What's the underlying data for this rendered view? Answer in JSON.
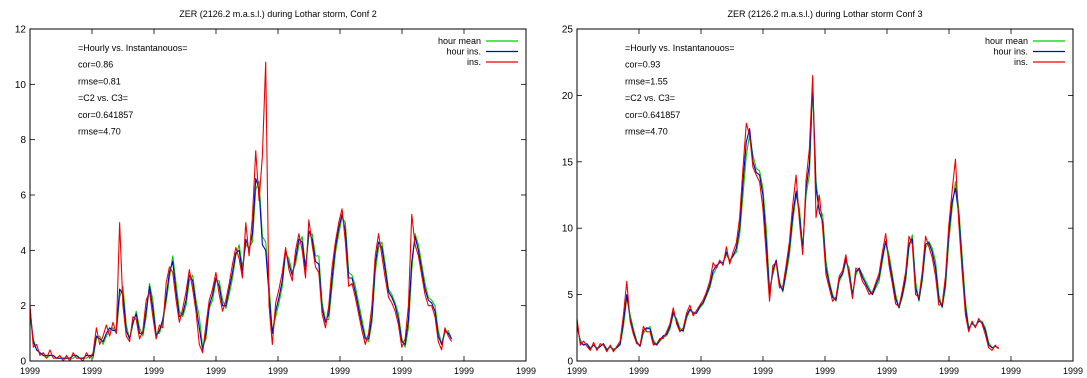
{
  "chart_data": [
    {
      "type": "line",
      "title": "ZER (2126.2 m.a.s.l.) during Lothar storm, Conf 2",
      "xlabel": "",
      "ylabel": "",
      "ylim": [
        0,
        12
      ],
      "yticks": [
        0,
        2,
        4,
        6,
        8,
        10,
        12
      ],
      "xticks": [
        "1999",
        "1999",
        "1999",
        "1999",
        "1999",
        "1999",
        "1999",
        "1999",
        "1999"
      ],
      "grid": false,
      "legend_position": "top-right",
      "annotations": [
        "=Hourly vs. Instantanouos=",
        "cor=0.86",
        "rmse=0.81",
        "=C2 vs. C3=",
        "cor=0.641857",
        "rmse=4.70"
      ],
      "series": [
        {
          "name": "hour mean",
          "color": "#00cc00",
          "values": [
            1.6,
            0.8,
            0.4,
            0.3,
            0.2,
            0.1,
            0.2,
            0.2,
            0.1,
            0.1,
            0.1,
            0.1,
            0.1,
            0.1,
            0.2,
            0.1,
            0.1,
            0.1,
            0.2,
            0.1,
            0.8,
            0.9,
            0.6,
            0.9,
            1.1,
            1.2,
            1.0,
            2.3,
            2.7,
            1.3,
            0.8,
            1.3,
            1.8,
            1.2,
            0.9,
            1.6,
            2.8,
            2.2,
            1.0,
            1.0,
            1.4,
            2.1,
            3.0,
            3.8,
            2.8,
            1.8,
            1.6,
            2.0,
            2.9,
            3.1,
            2.2,
            1.6,
            0.5,
            0.8,
            1.9,
            2.2,
            2.9,
            2.9,
            2.2,
            1.9,
            2.4,
            3.0,
            3.8,
            4.2,
            3.4,
            4.2,
            4.1,
            4.3,
            6.2,
            6.5,
            4.5,
            4.3,
            2.8,
            1.0,
            1.6,
            2.1,
            2.7,
            3.9,
            3.7,
            3.2,
            3.5,
            4.2,
            4.5,
            3.4,
            4.5,
            4.6,
            3.8,
            3.8,
            2.1,
            1.5,
            1.5,
            2.7,
            3.9,
            4.6,
            5.2,
            5.0,
            3.2,
            3.1,
            2.7,
            2.1,
            1.5,
            0.9,
            0.7,
            1.4,
            3.2,
            4.1,
            4.3,
            3.5,
            2.6,
            2.4,
            2.1,
            1.7,
            0.8,
            0.5,
            1.2,
            3.3,
            4.6,
            4.2,
            3.5,
            2.8,
            2.3,
            2.2,
            2.0,
            1.1,
            0.6,
            1.0,
            1.1,
            0.8
          ]
        },
        {
          "name": "hour ins.",
          "color": "#0000cc",
          "values": [
            1.9,
            0.7,
            0.4,
            0.3,
            0.2,
            0.2,
            0.2,
            0.2,
            0.1,
            0.1,
            0.1,
            0.1,
            0.1,
            0.2,
            0.2,
            0.1,
            0.1,
            0.2,
            0.2,
            0.2,
            0.9,
            0.8,
            0.7,
            1.0,
            1.2,
            1.1,
            1.1,
            2.6,
            2.4,
            1.1,
            0.8,
            1.4,
            1.7,
            1.0,
            1.0,
            1.8,
            2.7,
            1.9,
            0.9,
            1.1,
            1.5,
            2.3,
            3.2,
            3.6,
            2.5,
            1.6,
            1.7,
            2.2,
            3.1,
            2.9,
            2.0,
            1.2,
            0.4,
            1.0,
            2.0,
            2.4,
            3.0,
            2.7,
            2.0,
            2.0,
            2.6,
            3.2,
            3.9,
            4.0,
            3.2,
            4.4,
            4.0,
            4.6,
            6.6,
            6.2,
            4.2,
            4.0,
            2.4,
            1.0,
            1.8,
            2.3,
            2.9,
            4.0,
            3.5,
            3.1,
            3.7,
            4.4,
            4.3,
            3.3,
            4.7,
            4.4,
            3.6,
            3.5,
            1.9,
            1.4,
            1.7,
            3.0,
            4.1,
            4.8,
            5.3,
            4.7,
            3.0,
            3.0,
            2.5,
            1.9,
            1.3,
            0.8,
            0.8,
            1.6,
            3.5,
            4.3,
            4.1,
            3.3,
            2.5,
            2.3,
            2.0,
            1.5,
            0.7,
            0.6,
            1.5,
            3.6,
            4.5,
            4.0,
            3.3,
            2.6,
            2.2,
            2.1,
            1.8,
            0.9,
            0.6,
            1.1,
            1.0,
            0.8
          ]
        },
        {
          "name": "ins.",
          "color": "#ee0000",
          "values": [
            2.0,
            0.5,
            0.6,
            0.2,
            0.3,
            0.1,
            0.4,
            0.1,
            0.1,
            0.2,
            0.0,
            0.2,
            0.0,
            0.3,
            0.1,
            0.1,
            0.0,
            0.3,
            0.1,
            0.3,
            1.2,
            0.6,
            0.9,
            1.3,
            0.9,
            1.4,
            1.0,
            5.0,
            2.0,
            0.9,
            0.7,
            1.6,
            1.5,
            0.8,
            1.1,
            2.2,
            2.5,
            1.6,
            0.8,
            1.3,
            1.2,
            2.8,
            3.4,
            3.2,
            2.2,
            1.4,
            1.9,
            2.5,
            3.3,
            2.6,
            1.8,
            0.6,
            0.3,
            1.3,
            2.2,
            2.6,
            3.2,
            2.4,
            1.8,
            2.2,
            2.8,
            3.5,
            4.1,
            3.7,
            3.0,
            5.0,
            3.8,
            5.2,
            7.6,
            5.8,
            7.4,
            10.8,
            2.0,
            0.6,
            2.1,
            2.6,
            3.2,
            4.1,
            3.3,
            2.9,
            4.0,
            4.6,
            4.0,
            3.0,
            5.1,
            4.2,
            3.4,
            3.2,
            1.7,
            1.2,
            2.0,
            3.4,
            4.3,
            5.0,
            5.5,
            4.3,
            2.7,
            2.8,
            2.3,
            1.7,
            1.1,
            0.6,
            1.0,
            2.0,
            3.8,
            4.6,
            3.8,
            3.0,
            2.3,
            2.1,
            1.8,
            1.3,
            0.5,
            0.8,
            2.0,
            5.3,
            4.2,
            3.8,
            3.1,
            2.4,
            2.0,
            2.0,
            1.6,
            0.7,
            0.4,
            1.2,
            0.9,
            0.7
          ]
        }
      ]
    },
    {
      "type": "line",
      "title": "ZER (2126.2 m.a.s.l.) during Lothar storm Conf 3",
      "xlabel": "",
      "ylabel": "",
      "ylim": [
        0,
        25
      ],
      "yticks": [
        0,
        5,
        10,
        15,
        20,
        25
      ],
      "xticks": [
        "1999",
        "1999",
        "1999",
        "1999",
        "1999",
        "1999",
        "1999",
        "1999",
        "1999"
      ],
      "grid": false,
      "legend_position": "top-right",
      "annotations": [
        "=Hourly vs. Instantanouos=",
        "cor=0.93",
        "rmse=1.55",
        "=C2 vs. C3=",
        "cor=0.641857",
        "rmse=4.70"
      ],
      "series": [
        {
          "name": "hour mean",
          "color": "#00cc00",
          "values": [
            2.5,
            1.6,
            1.2,
            1.3,
            1.0,
            1.2,
            1.0,
            1.1,
            1.3,
            0.9,
            1.1,
            0.9,
            1.0,
            1.2,
            2.6,
            4.8,
            3.5,
            2.4,
            1.5,
            1.1,
            2.1,
            2.4,
            2.6,
            1.6,
            1.2,
            1.5,
            1.8,
            1.9,
            2.4,
            3.5,
            3.2,
            2.5,
            2.2,
            3.2,
            3.8,
            3.7,
            3.6,
            4.0,
            4.3,
            4.9,
            5.5,
            6.5,
            7.0,
            7.5,
            7.4,
            8.0,
            7.6,
            7.9,
            8.2,
            9.5,
            12.5,
            15.5,
            17.0,
            15.5,
            14.5,
            14.3,
            13.0,
            10.0,
            5.5,
            6.5,
            7.5,
            6.0,
            5.2,
            6.5,
            8.0,
            10.5,
            12.5,
            11.5,
            8.5,
            12.5,
            14.0,
            20.5,
            13.5,
            11.5,
            11.0,
            7.5,
            6.0,
            5.0,
            4.5,
            6.0,
            6.5,
            7.5,
            7.0,
            5.0,
            6.5,
            7.0,
            6.5,
            6.0,
            5.5,
            5.0,
            5.5,
            6.0,
            7.5,
            9.0,
            8.0,
            6.5,
            5.0,
            4.0,
            4.8,
            6.0,
            8.5,
            9.5,
            6.0,
            4.5,
            6.0,
            8.5,
            9.0,
            8.5,
            7.5,
            5.0,
            4.0,
            5.5,
            9.0,
            11.5,
            13.5,
            11.5,
            8.0,
            4.5,
            2.5,
            2.8,
            2.6,
            3.0,
            3.0,
            2.5,
            1.4,
            1.0,
            1.1,
            1.0
          ]
        },
        {
          "name": "hour ins.",
          "color": "#0000cc",
          "values": [
            2.8,
            1.4,
            1.2,
            1.3,
            0.9,
            1.2,
            0.9,
            1.1,
            1.3,
            0.8,
            1.1,
            0.8,
            1.0,
            1.3,
            3.0,
            5.0,
            3.2,
            2.2,
            1.4,
            1.1,
            2.3,
            2.5,
            2.4,
            1.4,
            1.2,
            1.6,
            1.9,
            2.0,
            2.6,
            3.7,
            3.0,
            2.3,
            2.3,
            3.4,
            3.9,
            3.6,
            3.6,
            4.1,
            4.4,
            5.0,
            5.7,
            6.8,
            7.2,
            7.4,
            7.4,
            8.2,
            7.5,
            7.9,
            8.5,
            10.0,
            13.5,
            16.5,
            17.5,
            15.0,
            14.2,
            14.0,
            12.5,
            9.0,
            5.0,
            6.8,
            7.6,
            5.8,
            5.3,
            6.8,
            8.5,
            11.0,
            12.8,
            11.0,
            8.3,
            13.0,
            14.8,
            21.0,
            13.0,
            11.2,
            10.5,
            7.0,
            5.8,
            4.8,
            4.6,
            6.2,
            6.6,
            7.7,
            6.6,
            4.9,
            6.7,
            7.0,
            6.3,
            5.8,
            5.3,
            5.0,
            5.7,
            6.3,
            7.8,
            9.0,
            7.6,
            6.2,
            4.7,
            4.0,
            5.0,
            6.3,
            8.8,
            9.2,
            5.5,
            4.6,
            6.3,
            8.8,
            8.9,
            8.2,
            7.0,
            4.6,
            4.1,
            5.9,
            9.6,
            12.0,
            13.0,
            11.0,
            7.4,
            4.0,
            2.4,
            2.9,
            2.6,
            3.0,
            2.9,
            2.3,
            1.2,
            1.0,
            1.1,
            1.0
          ]
        },
        {
          "name": "ins.",
          "color": "#ee0000",
          "values": [
            3.2,
            1.2,
            1.5,
            1.1,
            0.8,
            1.4,
            0.8,
            1.3,
            1.2,
            0.7,
            1.2,
            0.7,
            1.1,
            1.5,
            3.5,
            6.0,
            3.0,
            2.0,
            1.3,
            1.2,
            2.6,
            2.2,
            2.2,
            1.2,
            1.3,
            1.7,
            1.7,
            2.2,
            2.8,
            4.0,
            2.8,
            2.2,
            2.5,
            3.6,
            4.2,
            3.4,
            3.8,
            4.2,
            4.6,
            5.2,
            6.0,
            7.4,
            7.0,
            7.6,
            7.2,
            8.6,
            7.3,
            8.2,
            8.9,
            10.8,
            14.5,
            17.9,
            17.0,
            14.6,
            14.0,
            13.5,
            11.5,
            8.0,
            4.5,
            7.2,
            7.4,
            5.5,
            5.6,
            7.2,
            9.0,
            11.8,
            14.0,
            10.5,
            8.0,
            13.6,
            16.0,
            21.5,
            10.8,
            12.5,
            10.0,
            6.5,
            5.5,
            4.5,
            4.8,
            6.4,
            6.8,
            8.0,
            6.3,
            4.7,
            7.0,
            6.8,
            6.0,
            5.6,
            5.0,
            5.2,
            5.9,
            6.6,
            8.2,
            9.6,
            7.2,
            5.8,
            4.3,
            4.1,
            5.3,
            6.7,
            9.4,
            8.8,
            5.0,
            4.8,
            6.7,
            9.4,
            8.6,
            7.8,
            6.4,
            4.2,
            4.3,
            6.4,
            10.2,
            12.8,
            15.2,
            10.4,
            6.8,
            3.5,
            2.2,
            3.0,
            2.5,
            3.2,
            2.8,
            2.0,
            1.0,
            0.8,
            1.2,
            0.9
          ]
        }
      ]
    }
  ]
}
